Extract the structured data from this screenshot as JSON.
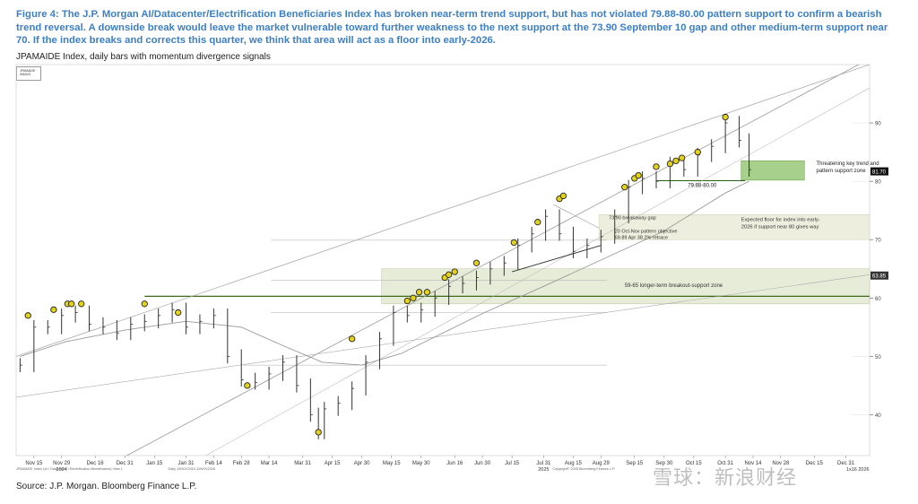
{
  "figure": {
    "caption": "Figure 4: The J.P. Morgan AI/Datacenter/Electrification Beneficiaries Index has broken near-term trend support, but has not violated 79.88-80.00 pattern support to confirm a bearish trend reversal. A downside break would leave the market vulnerable toward further weakness to the next support at the 73.90 September 10 gap and other medium-term support near 70. If the index breaks and corrects this quarter, we think that area will act as a floor into early-2026.",
    "subtitle": "JPAMAIDE Index, daily bars with momentum divergence signals",
    "legend_items": [
      "JPAMAIDE",
      "SMAVG"
    ],
    "source": "Source: J.P. Morgan. Bloomberg Finance L.P.",
    "watermark": "雪球：新浪财经",
    "footer_left": "JPAMAIDE Index (AI / Datacenter / Electrification Beneficiaries) View 1",
    "footer_mid": "Daily 10NOV2024-12NOV2026",
    "footer_right": "Copyright© 2025 Bloomberg Finance L.P."
  },
  "chart_data": {
    "type": "line",
    "title": "",
    "xlabel": "",
    "ylabel": "",
    "ylim": [
      33,
      100
    ],
    "xlim": [
      "2024-11-06",
      "2026-01-12"
    ],
    "y_ticks": [
      40,
      50,
      60,
      70,
      80,
      90
    ],
    "x_ticks": [
      "2024-11-15",
      "2024-11-29",
      "2024-12-16",
      "2024-12-31",
      "2025-01-15",
      "2025-01-31",
      "2025-02-14",
      "2025-02-28",
      "2025-03-14",
      "2025-03-31",
      "2025-04-15",
      "2025-04-30",
      "2025-05-15",
      "2025-05-30",
      "2025-06-16",
      "2025-06-30",
      "2025-07-15",
      "2025-07-31",
      "2025-08-15",
      "2025-08-29",
      "2025-09-15",
      "2025-09-30",
      "2025-10-15",
      "2025-10-31",
      "2025-11-14",
      "2025-11-28",
      "2025-12-15",
      "2025-12-31"
    ],
    "x_tick_labels": [
      "Nov 15",
      "Nov 29",
      "Dec 16",
      "Dec 31",
      "Jan 15",
      "Jan 31",
      "Feb 14",
      "Feb 28",
      "Mar 14",
      "Mar 31",
      "Apr 15",
      "Apr 30",
      "May 15",
      "May 30",
      "Jun 16",
      "Jun 30",
      "Jul 15",
      "Jul 31",
      "Aug 15",
      "Aug 29",
      "Sep 15",
      "Sep 30",
      "Oct 15",
      "Oct 31",
      "Nov 14",
      "Nov 28",
      "Dec 15",
      "Dec 31"
    ],
    "year_labels": [
      {
        "date": "2024-11-29",
        "text": "2024"
      },
      {
        "date": "2025-07-31",
        "text": "2025"
      },
      {
        "date": "2026-01-06",
        "text": "1x16 2026"
      }
    ],
    "grid": true,
    "series": [
      {
        "name": "JPAMAIDE",
        "x": [
          "2024-11-08",
          "2024-11-15",
          "2024-11-22",
          "2024-11-29",
          "2024-12-06",
          "2024-12-13",
          "2024-12-20",
          "2024-12-27",
          "2025-01-03",
          "2025-01-10",
          "2025-01-17",
          "2025-01-24",
          "2025-01-31",
          "2025-02-07",
          "2025-02-14",
          "2025-02-21",
          "2025-02-28",
          "2025-03-07",
          "2025-03-14",
          "2025-03-21",
          "2025-03-28",
          "2025-04-04",
          "2025-04-08",
          "2025-04-11",
          "2025-04-18",
          "2025-04-25",
          "2025-05-02",
          "2025-05-09",
          "2025-05-16",
          "2025-05-23",
          "2025-05-30",
          "2025-06-06",
          "2025-06-13",
          "2025-06-20",
          "2025-06-27",
          "2025-07-04",
          "2025-07-11",
          "2025-07-18",
          "2025-07-25",
          "2025-08-01",
          "2025-08-08",
          "2025-08-15",
          "2025-08-22",
          "2025-08-29",
          "2025-09-05",
          "2025-09-12",
          "2025-09-19",
          "2025-09-26",
          "2025-10-03",
          "2025-10-10",
          "2025-10-17",
          "2025-10-24",
          "2025-10-31",
          "2025-11-07",
          "2025-11-12"
        ],
        "values": [
          48.5,
          55,
          55,
          57,
          57.5,
          55.5,
          55,
          54,
          55.5,
          56,
          57,
          58,
          55,
          56,
          57,
          50,
          46,
          45.5,
          47,
          49,
          45,
          40,
          37,
          41,
          42,
          44.5,
          49,
          53,
          57.5,
          57,
          58,
          60,
          62,
          62.5,
          63.5,
          65,
          66,
          69,
          71,
          74,
          71,
          68,
          69,
          70.5,
          74,
          79,
          80.5,
          80,
          83,
          82,
          84.5,
          86,
          90,
          87,
          82
        ]
      },
      {
        "name": "SMAVG",
        "x": [
          "2024-11-08",
          "2024-12-01",
          "2024-12-31",
          "2025-01-31",
          "2025-02-28",
          "2025-03-20",
          "2025-04-10",
          "2025-04-30",
          "2025-05-20",
          "2025-06-10",
          "2025-07-01",
          "2025-07-31",
          "2025-08-29",
          "2025-09-30",
          "2025-10-31",
          "2025-11-12"
        ],
        "values": [
          50,
          52.5,
          54.5,
          56,
          55,
          52,
          49,
          48.5,
          50.5,
          54,
          57.5,
          62,
          66.5,
          71.5,
          78,
          80
        ]
      }
    ],
    "momentum_signals": [
      {
        "x": "2024-11-12",
        "y": 57
      },
      {
        "x": "2024-11-25",
        "y": 58
      },
      {
        "x": "2024-12-02",
        "y": 59
      },
      {
        "x": "2024-12-04",
        "y": 59
      },
      {
        "x": "2024-12-09",
        "y": 59
      },
      {
        "x": "2025-01-10",
        "y": 59
      },
      {
        "x": "2025-01-27",
        "y": 57.5
      },
      {
        "x": "2025-03-03",
        "y": 45
      },
      {
        "x": "2025-04-08",
        "y": 37
      },
      {
        "x": "2025-04-25",
        "y": 53
      },
      {
        "x": "2025-05-23",
        "y": 59.5
      },
      {
        "x": "2025-05-26",
        "y": 60
      },
      {
        "x": "2025-05-29",
        "y": 61
      },
      {
        "x": "2025-06-02",
        "y": 61
      },
      {
        "x": "2025-06-11",
        "y": 63.5
      },
      {
        "x": "2025-06-13",
        "y": 64
      },
      {
        "x": "2025-06-16",
        "y": 64.5
      },
      {
        "x": "2025-06-27",
        "y": 66
      },
      {
        "x": "2025-07-16",
        "y": 69.5
      },
      {
        "x": "2025-07-28",
        "y": 73
      },
      {
        "x": "2025-08-08",
        "y": 77
      },
      {
        "x": "2025-08-10",
        "y": 77.5
      },
      {
        "x": "2025-09-10",
        "y": 79
      },
      {
        "x": "2025-09-15",
        "y": 80.5
      },
      {
        "x": "2025-09-17",
        "y": 81
      },
      {
        "x": "2025-09-26",
        "y": 82.5
      },
      {
        "x": "2025-10-03",
        "y": 83
      },
      {
        "x": "2025-10-06",
        "y": 83.5
      },
      {
        "x": "2025-10-09",
        "y": 84
      },
      {
        "x": "2025-10-17",
        "y": 85
      },
      {
        "x": "2025-10-31",
        "y": 91
      }
    ],
    "price_label": "81.70",
    "level_label": "63.85",
    "annotations": [
      "Threatening key trend and pattern support zone",
      "79.88-80.00",
      "73.90 breakaway gap",
      "20 Oct-Nov pattern objective 69.89 Apr 38.2% retrace",
      "Expected floor for index into early-2026 if support near 80 gives way",
      "59-65 longer-term breakout-support zone"
    ]
  }
}
